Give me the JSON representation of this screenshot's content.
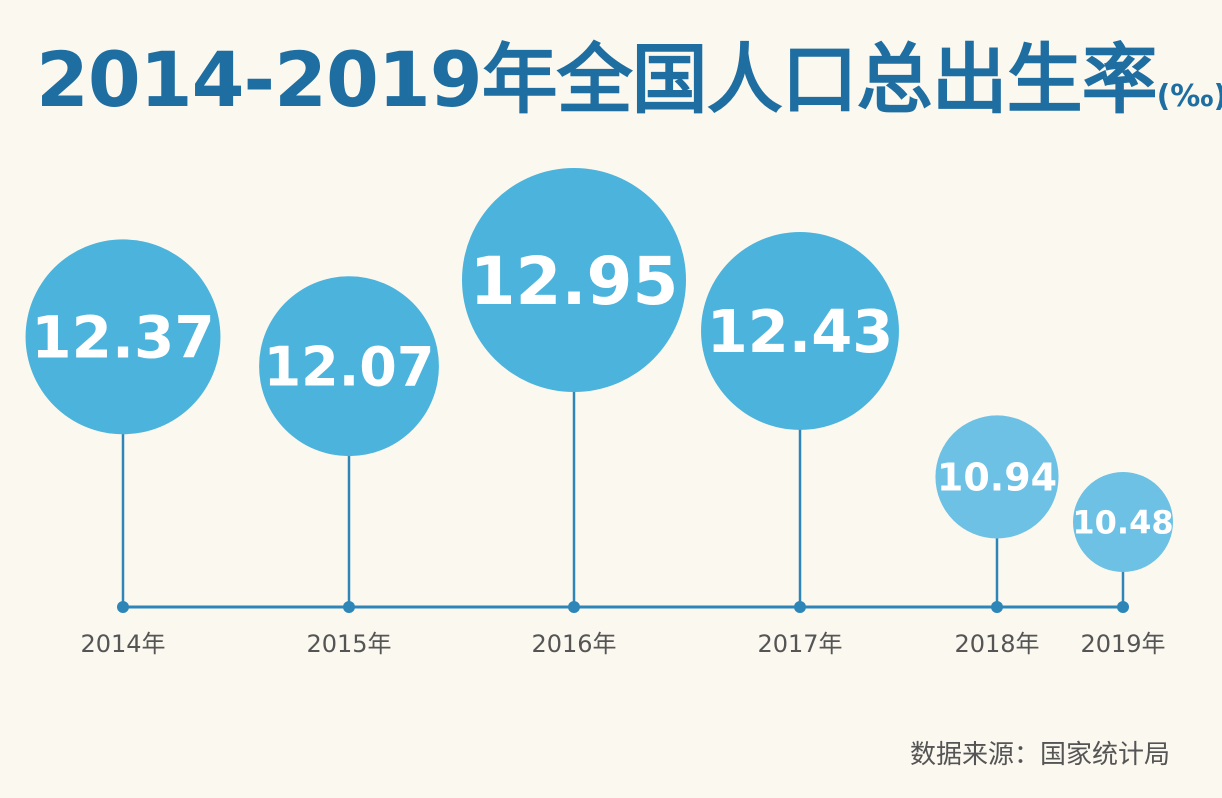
{
  "chart_data": {
    "type": "bubble",
    "title": "2014-2019年全国人口总出生率",
    "unit": "(‰)",
    "categories": [
      "2014年",
      "2015年",
      "2016年",
      "2017年",
      "2018年",
      "2019年"
    ],
    "values": [
      12.37,
      12.07,
      12.95,
      12.43,
      10.94,
      10.48
    ],
    "value_labels": [
      "12.37",
      "12.07",
      "12.95",
      "12.43",
      "10.94",
      "10.48"
    ],
    "source": "数据来源：国家统计局",
    "colors": {
      "bubble_dark": "#4bb3dc",
      "bubble_light": "#6cc1e4",
      "line": "#2e86b8",
      "title": "#1f6ea1",
      "tick_text": "#555555"
    }
  }
}
